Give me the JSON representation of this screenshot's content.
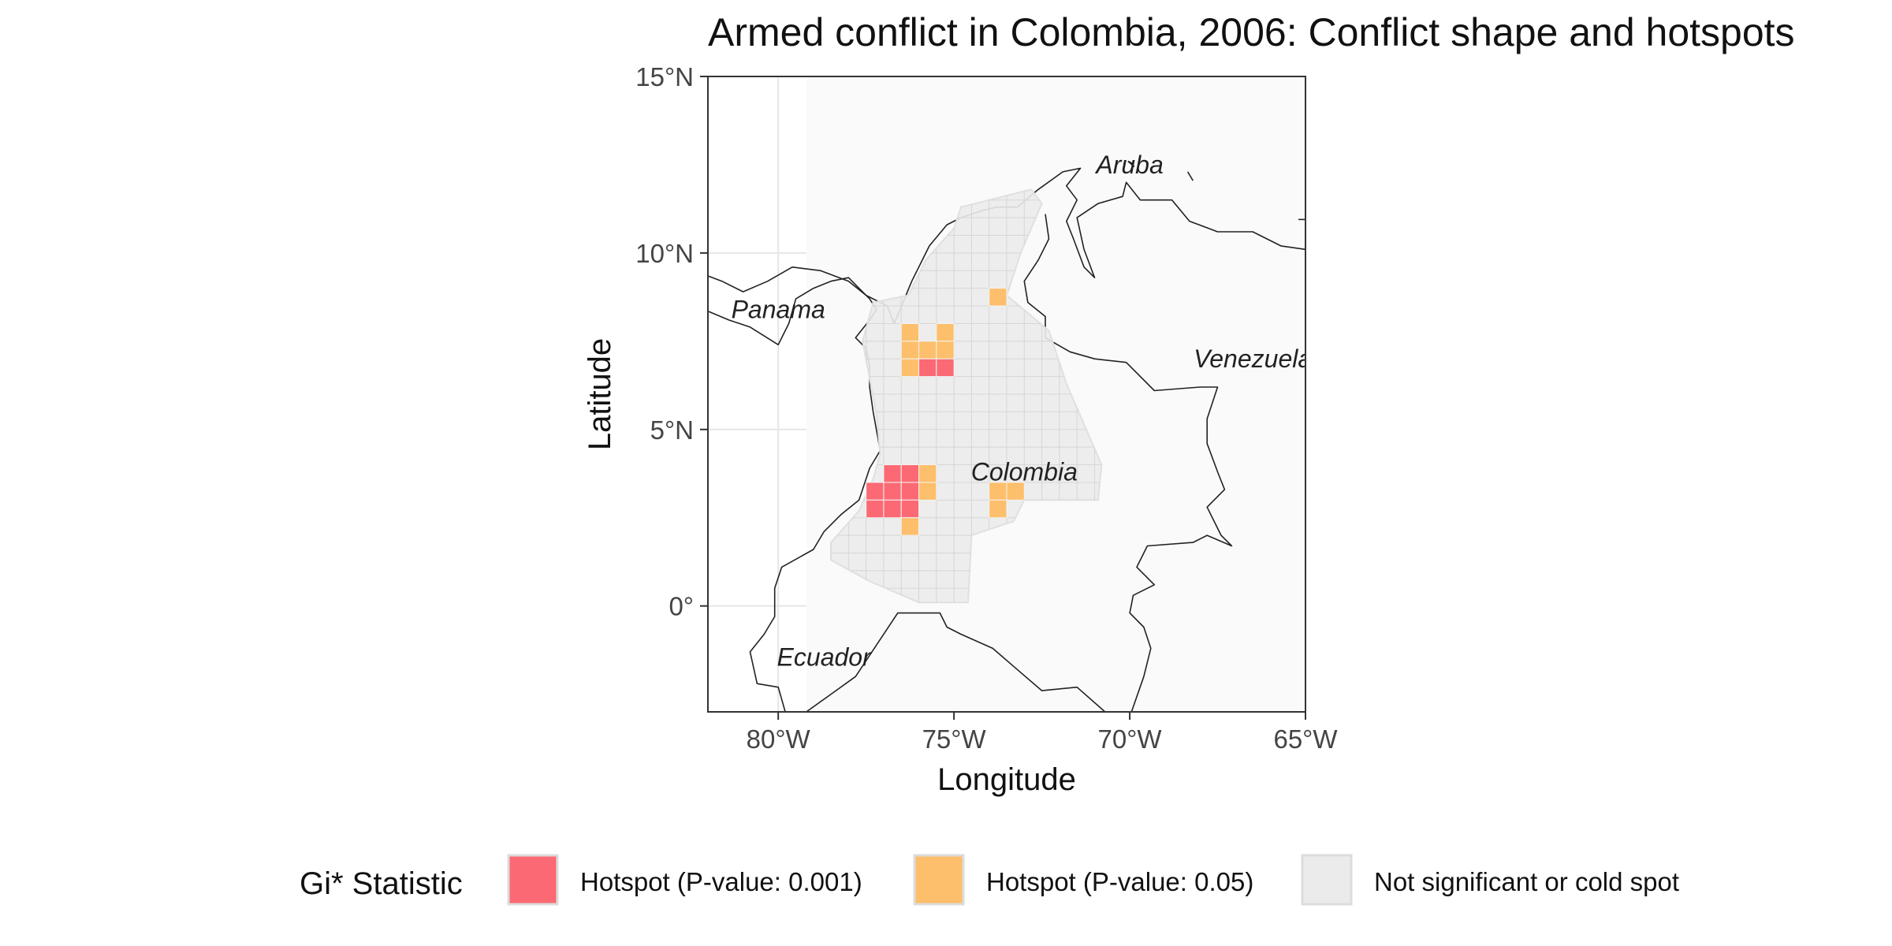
{
  "title": "Armed conflict in Colombia, 2006: Conflict shape and hotspots",
  "xlabel": "Longitude",
  "ylabel": "Latitude",
  "xlim": [
    -82,
    -65
  ],
  "ylim": [
    -3,
    15
  ],
  "x_ticks": [
    {
      "value": -80,
      "label": "80°W"
    },
    {
      "value": -75,
      "label": "75°W"
    },
    {
      "value": -70,
      "label": "70°W"
    },
    {
      "value": -65,
      "label": "65°W"
    }
  ],
  "y_ticks": [
    {
      "value": 0,
      "label": "0°"
    },
    {
      "value": 5,
      "label": "5°N"
    },
    {
      "value": 10,
      "label": "10°N"
    },
    {
      "value": 15,
      "label": "15°N"
    }
  ],
  "country_labels": [
    {
      "name": "Aruba",
      "lon": -70.0,
      "lat": 12.5
    },
    {
      "name": "Panama",
      "lon": -80.0,
      "lat": 8.4
    },
    {
      "name": "Venezuela",
      "lon": -66.5,
      "lat": 7.0
    },
    {
      "name": "Colombia",
      "lon": -73.0,
      "lat": 3.8
    },
    {
      "name": "Ecuador",
      "lon": -78.7,
      "lat": -1.45
    }
  ],
  "cell_size_deg": 0.5,
  "chart_data": {
    "type": "heatmap",
    "legend_title": "Gi* Statistic",
    "categories": [
      {
        "key": "hot001",
        "label": "Hotspot (P-value: 0.001)",
        "color": "#fb6a74"
      },
      {
        "key": "hot005",
        "label": "Hotspot (P-value: 0.05)",
        "color": "#fdbf6b"
      },
      {
        "key": "ns",
        "label": "Not significant or cold spot",
        "color": "#ebebeb"
      }
    ],
    "cells": [
      {
        "lon": -73.75,
        "lat": 8.75,
        "cat": "hot005"
      },
      {
        "lon": -76.25,
        "lat": 7.75,
        "cat": "hot005"
      },
      {
        "lon": -75.25,
        "lat": 7.75,
        "cat": "hot005"
      },
      {
        "lon": -76.25,
        "lat": 7.25,
        "cat": "hot005"
      },
      {
        "lon": -75.75,
        "lat": 7.25,
        "cat": "hot005"
      },
      {
        "lon": -75.25,
        "lat": 7.25,
        "cat": "hot005"
      },
      {
        "lon": -76.25,
        "lat": 6.75,
        "cat": "hot005"
      },
      {
        "lon": -75.75,
        "lat": 6.75,
        "cat": "hot001"
      },
      {
        "lon": -75.25,
        "lat": 6.75,
        "cat": "hot001"
      },
      {
        "lon": -76.75,
        "lat": 3.75,
        "cat": "hot001"
      },
      {
        "lon": -76.25,
        "lat": 3.75,
        "cat": "hot001"
      },
      {
        "lon": -75.75,
        "lat": 3.75,
        "cat": "hot005"
      },
      {
        "lon": -77.25,
        "lat": 3.25,
        "cat": "hot001"
      },
      {
        "lon": -76.75,
        "lat": 3.25,
        "cat": "hot001"
      },
      {
        "lon": -76.25,
        "lat": 3.25,
        "cat": "hot001"
      },
      {
        "lon": -75.75,
        "lat": 3.25,
        "cat": "hot005"
      },
      {
        "lon": -73.75,
        "lat": 3.25,
        "cat": "hot005"
      },
      {
        "lon": -73.25,
        "lat": 3.25,
        "cat": "hot005"
      },
      {
        "lon": -77.25,
        "lat": 2.75,
        "cat": "hot001"
      },
      {
        "lon": -76.75,
        "lat": 2.75,
        "cat": "hot001"
      },
      {
        "lon": -76.25,
        "lat": 2.75,
        "cat": "hot001"
      },
      {
        "lon": -73.75,
        "lat": 2.75,
        "cat": "hot005"
      },
      {
        "lon": -76.25,
        "lat": 2.25,
        "cat": "hot005"
      }
    ],
    "conflict_shape": [
      [
        -74.8,
        11.3
      ],
      [
        -72.8,
        11.8
      ],
      [
        -72.5,
        11.4
      ],
      [
        -73.1,
        10.0
      ],
      [
        -73.5,
        8.8
      ],
      [
        -72.3,
        7.8
      ],
      [
        -71.8,
        6.3
      ],
      [
        -70.8,
        4.0
      ],
      [
        -70.9,
        3.0
      ],
      [
        -73.0,
        3.0
      ],
      [
        -73.3,
        2.4
      ],
      [
        -74.5,
        2.0
      ],
      [
        -74.6,
        0.1
      ],
      [
        -76.0,
        0.1
      ],
      [
        -77.4,
        0.7
      ],
      [
        -78.5,
        1.3
      ],
      [
        -78.5,
        1.8
      ],
      [
        -77.7,
        2.7
      ],
      [
        -77.3,
        3.6
      ],
      [
        -77.1,
        4.3
      ],
      [
        -77.2,
        5.4
      ],
      [
        -77.6,
        7.5
      ],
      [
        -77.3,
        8.6
      ],
      [
        -76.3,
        8.8
      ],
      [
        -75.8,
        9.8
      ],
      [
        -75.0,
        10.7
      ]
    ]
  },
  "basemap": {
    "land_color": "#fafafa",
    "border_color": "#222222",
    "grid_color": "#e6e6e6",
    "frame_color": "#333333",
    "outlines": [
      [
        [
          -82.0,
          8.35
        ],
        [
          -81.4,
          8.1
        ],
        [
          -80.8,
          7.9
        ],
        [
          -80.0,
          7.4
        ],
        [
          -79.7,
          8.0
        ],
        [
          -79.5,
          8.7
        ],
        [
          -79.0,
          9.0
        ],
        [
          -78.5,
          9.2
        ],
        [
          -78.0,
          9.3
        ],
        [
          -77.7,
          9.0
        ],
        [
          -77.4,
          8.7
        ],
        [
          -77.2,
          8.4
        ],
        [
          -77.4,
          8.1
        ],
        [
          -77.8,
          7.6
        ],
        [
          -77.5,
          7.3
        ],
        [
          -77.4,
          6.8
        ],
        [
          -77.4,
          6.2
        ],
        [
          -77.3,
          5.5
        ],
        [
          -77.1,
          4.4
        ],
        [
          -77.4,
          3.9
        ],
        [
          -77.7,
          3.0
        ],
        [
          -78.2,
          2.6
        ],
        [
          -78.7,
          2.1
        ],
        [
          -79.0,
          1.6
        ],
        [
          -79.9,
          1.1
        ],
        [
          -80.1,
          0.5
        ],
        [
          -80.1,
          -0.3
        ],
        [
          -80.4,
          -0.8
        ],
        [
          -80.8,
          -1.3
        ],
        [
          -80.6,
          -2.2
        ],
        [
          -80.0,
          -2.3
        ],
        [
          -79.8,
          -3.0
        ]
      ],
      [
        [
          -82.0,
          9.35
        ],
        [
          -81.6,
          9.2
        ],
        [
          -81.0,
          8.9
        ],
        [
          -80.3,
          9.2
        ],
        [
          -79.6,
          9.6
        ],
        [
          -78.8,
          9.5
        ],
        [
          -78.0,
          9.2
        ],
        [
          -77.5,
          8.8
        ],
        [
          -76.9,
          8.5
        ],
        [
          -76.7,
          8.0
        ],
        [
          -76.2,
          9.2
        ],
        [
          -75.7,
          10.2
        ],
        [
          -75.2,
          10.8
        ],
        [
          -74.8,
          11.0
        ],
        [
          -74.2,
          11.2
        ],
        [
          -73.8,
          11.3
        ],
        [
          -73.2,
          11.3
        ],
        [
          -72.6,
          11.8
        ],
        [
          -71.9,
          12.3
        ],
        [
          -71.4,
          12.4
        ],
        [
          -71.8,
          11.9
        ],
        [
          -71.5,
          11.5
        ],
        [
          -71.8,
          10.9
        ],
        [
          -71.6,
          10.4
        ],
        [
          -71.3,
          9.6
        ],
        [
          -71.0,
          9.3
        ],
        [
          -71.3,
          10.1
        ],
        [
          -71.5,
          11.0
        ],
        [
          -70.9,
          11.4
        ],
        [
          -70.2,
          11.6
        ],
        [
          -70.1,
          12.0
        ],
        [
          -69.7,
          11.5
        ],
        [
          -68.8,
          11.5
        ],
        [
          -68.3,
          10.9
        ],
        [
          -67.5,
          10.6
        ],
        [
          -66.5,
          10.6
        ],
        [
          -65.7,
          10.2
        ],
        [
          -65.0,
          10.1
        ]
      ],
      [
        [
          -72.4,
          11.1
        ],
        [
          -72.3,
          10.4
        ],
        [
          -72.6,
          9.8
        ],
        [
          -73.0,
          9.2
        ],
        [
          -72.9,
          8.6
        ],
        [
          -72.4,
          8.2
        ],
        [
          -72.4,
          7.6
        ],
        [
          -71.7,
          7.2
        ],
        [
          -71.0,
          7.0
        ],
        [
          -70.1,
          6.9
        ],
        [
          -69.3,
          6.1
        ],
        [
          -68.0,
          6.2
        ],
        [
          -67.5,
          6.2
        ],
        [
          -67.8,
          5.3
        ],
        [
          -67.8,
          4.6
        ],
        [
          -67.5,
          3.8
        ],
        [
          -67.3,
          3.3
        ],
        [
          -67.8,
          2.8
        ],
        [
          -67.4,
          2.0
        ],
        [
          -67.1,
          1.7
        ],
        [
          -67.8,
          2.0
        ],
        [
          -68.2,
          1.8
        ],
        [
          -69.5,
          1.7
        ],
        [
          -69.8,
          1.1
        ],
        [
          -69.3,
          0.6
        ],
        [
          -69.9,
          0.3
        ],
        [
          -70.0,
          -0.2
        ],
        [
          -69.6,
          -0.6
        ],
        [
          -69.4,
          -1.2
        ],
        [
          -69.6,
          -2.0
        ],
        [
          -69.95,
          -3.0
        ]
      ],
      [
        [
          -79.2,
          -3.0
        ],
        [
          -78.5,
          -2.5
        ],
        [
          -77.8,
          -2.0
        ],
        [
          -76.6,
          -0.2
        ],
        [
          -75.4,
          -0.2
        ],
        [
          -75.2,
          -0.6
        ],
        [
          -74.8,
          -0.8
        ],
        [
          -73.9,
          -1.2
        ],
        [
          -73.2,
          -1.8
        ],
        [
          -72.5,
          -2.4
        ],
        [
          -71.5,
          -2.3
        ],
        [
          -70.7,
          -3.0
        ]
      ],
      [
        [
          -70.05,
          12.6
        ],
        [
          -69.88,
          12.45
        ],
        [
          -69.95,
          12.55
        ],
        [
          -70.05,
          12.6
        ]
      ],
      [
        [
          -68.35,
          12.3
        ],
        [
          -68.2,
          12.05
        ]
      ],
      [
        [
          -65.2,
          10.95
        ],
        [
          -65.0,
          10.95
        ]
      ]
    ]
  }
}
